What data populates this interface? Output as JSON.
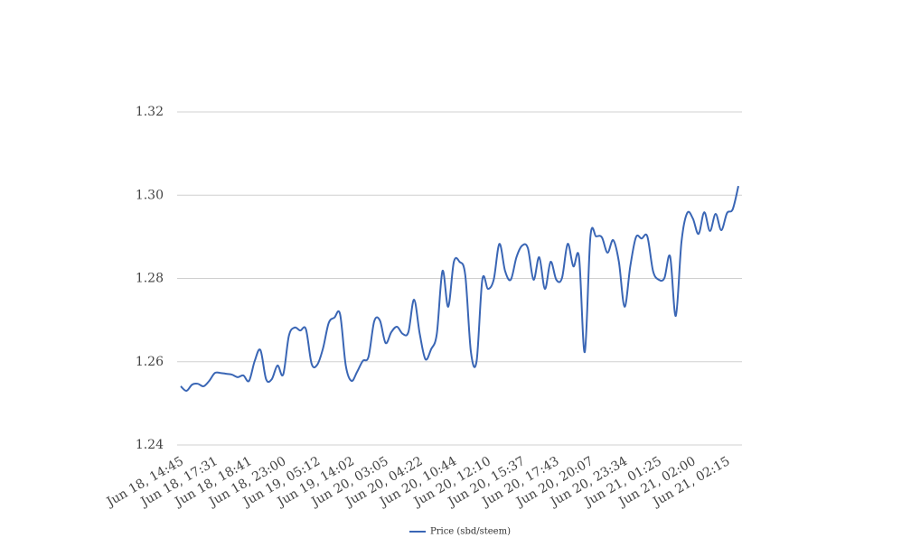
{
  "chart_data": {
    "type": "line",
    "categories": [
      "Jun 18, 14:45",
      null,
      null,
      null,
      null,
      null,
      "Jun 18, 17:31",
      null,
      null,
      null,
      null,
      null,
      "Jun 18, 18:41",
      null,
      null,
      null,
      null,
      null,
      "Jun 18, 23:00",
      null,
      null,
      null,
      null,
      null,
      "Jun 19, 05:12",
      null,
      null,
      null,
      null,
      null,
      "Jun 19, 14:02",
      null,
      null,
      null,
      null,
      null,
      "Jun 20, 03:05",
      null,
      null,
      null,
      null,
      null,
      "Jun 20, 04:22",
      null,
      null,
      null,
      null,
      null,
      "Jun 20, 10:44",
      null,
      null,
      null,
      null,
      null,
      "Jun 20, 12:10",
      null,
      null,
      null,
      null,
      null,
      "Jun 20, 15:37",
      null,
      null,
      null,
      null,
      null,
      "Jun 20, 17:43",
      null,
      null,
      null,
      null,
      null,
      "Jun 20, 20:07",
      null,
      null,
      null,
      null,
      null,
      "Jun 20, 23:34",
      null,
      null,
      null,
      null,
      null,
      "Jun 21, 01:25",
      null,
      null,
      null,
      null,
      null,
      "Jun 21, 02:00",
      null,
      null,
      null,
      null,
      null,
      "Jun 21, 02:15",
      null,
      null
    ],
    "series": [
      {
        "name": "Price (sbd/steem)",
        "color": "#3a66b5",
        "values": [
          1.2541,
          1.253,
          1.2545,
          1.2547,
          1.2541,
          1.2554,
          1.2573,
          1.2573,
          1.2571,
          1.2569,
          1.2563,
          1.2567,
          1.2554,
          1.2602,
          1.2628,
          1.2558,
          1.2558,
          1.2591,
          1.2569,
          1.2662,
          1.2682,
          1.2675,
          1.2678,
          1.2595,
          1.2593,
          1.2632,
          1.2693,
          1.2706,
          1.2714,
          1.2591,
          1.2554,
          1.2576,
          1.2602,
          1.2612,
          1.2697,
          1.2699,
          1.2645,
          1.2671,
          1.2684,
          1.2667,
          1.2671,
          1.2749,
          1.2667,
          1.2606,
          1.263,
          1.2667,
          1.2818,
          1.2732,
          1.284,
          1.284,
          1.2808,
          1.2623,
          1.2602,
          1.2797,
          1.2775,
          1.2797,
          1.2883,
          1.2818,
          1.2797,
          1.2851,
          1.2879,
          1.2873,
          1.2797,
          1.2851,
          1.2775,
          1.284,
          1.2797,
          1.2801,
          1.2883,
          1.2829,
          1.2851,
          1.2623,
          1.2901,
          1.2901,
          1.2899,
          1.2862,
          1.2892,
          1.284,
          1.2732,
          1.2829,
          1.2899,
          1.2896,
          1.2901,
          1.2818,
          1.2797,
          1.2801,
          1.2853,
          1.271,
          1.2888,
          1.2957,
          1.2944,
          1.2907,
          1.2959,
          1.2914,
          1.2955,
          1.2916,
          1.2957,
          1.2966,
          1.3022
        ]
      }
    ],
    "ylim": [
      1.24,
      1.32
    ],
    "yticks": [
      {
        "value": 1.24,
        "label": "1.24"
      },
      {
        "value": 1.26,
        "label": "1.26"
      },
      {
        "value": 1.28,
        "label": "1.28"
      },
      {
        "value": 1.3,
        "label": "1.30"
      },
      {
        "value": 1.32,
        "label": "1.32"
      }
    ],
    "grid": true,
    "legend": "bottom"
  }
}
